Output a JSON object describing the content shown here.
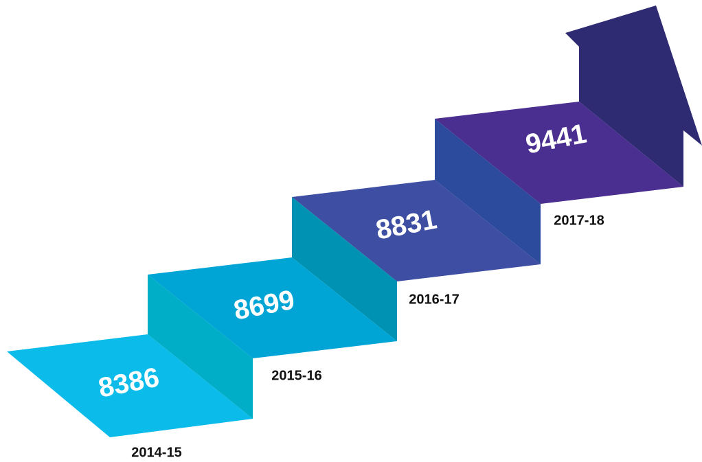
{
  "steps": [
    {
      "label": "2014-15",
      "value": 8386
    },
    {
      "label": "2015-16",
      "value": 8699
    },
    {
      "label": "2016-17",
      "value": 8831
    },
    {
      "label": "2017-18",
      "value": 9441
    }
  ]
}
